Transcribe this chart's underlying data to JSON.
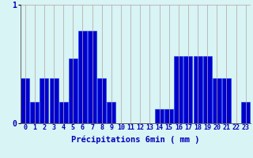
{
  "xlabel": "Précipitations 6min ( mm )",
  "values": [
    0.38,
    0.18,
    0.38,
    0.38,
    0.18,
    0.55,
    0.78,
    0.78,
    0.38,
    0.18,
    0.0,
    0.0,
    0.0,
    0.0,
    0.12,
    0.12,
    0.57,
    0.57,
    0.57,
    0.57,
    0.38,
    0.38,
    0.0,
    0.18
  ],
  "bar_color": "#0000cc",
  "bar_edge_color": "#1a3aee",
  "background_color": "#d8f4f4",
  "grid_color": "#b8a8a8",
  "text_color": "#0000bb",
  "ylim": [
    0,
    1.0
  ],
  "yticks": [
    0,
    1
  ],
  "xlabel_fontsize": 7.5,
  "tick_fontsize": 6.0
}
